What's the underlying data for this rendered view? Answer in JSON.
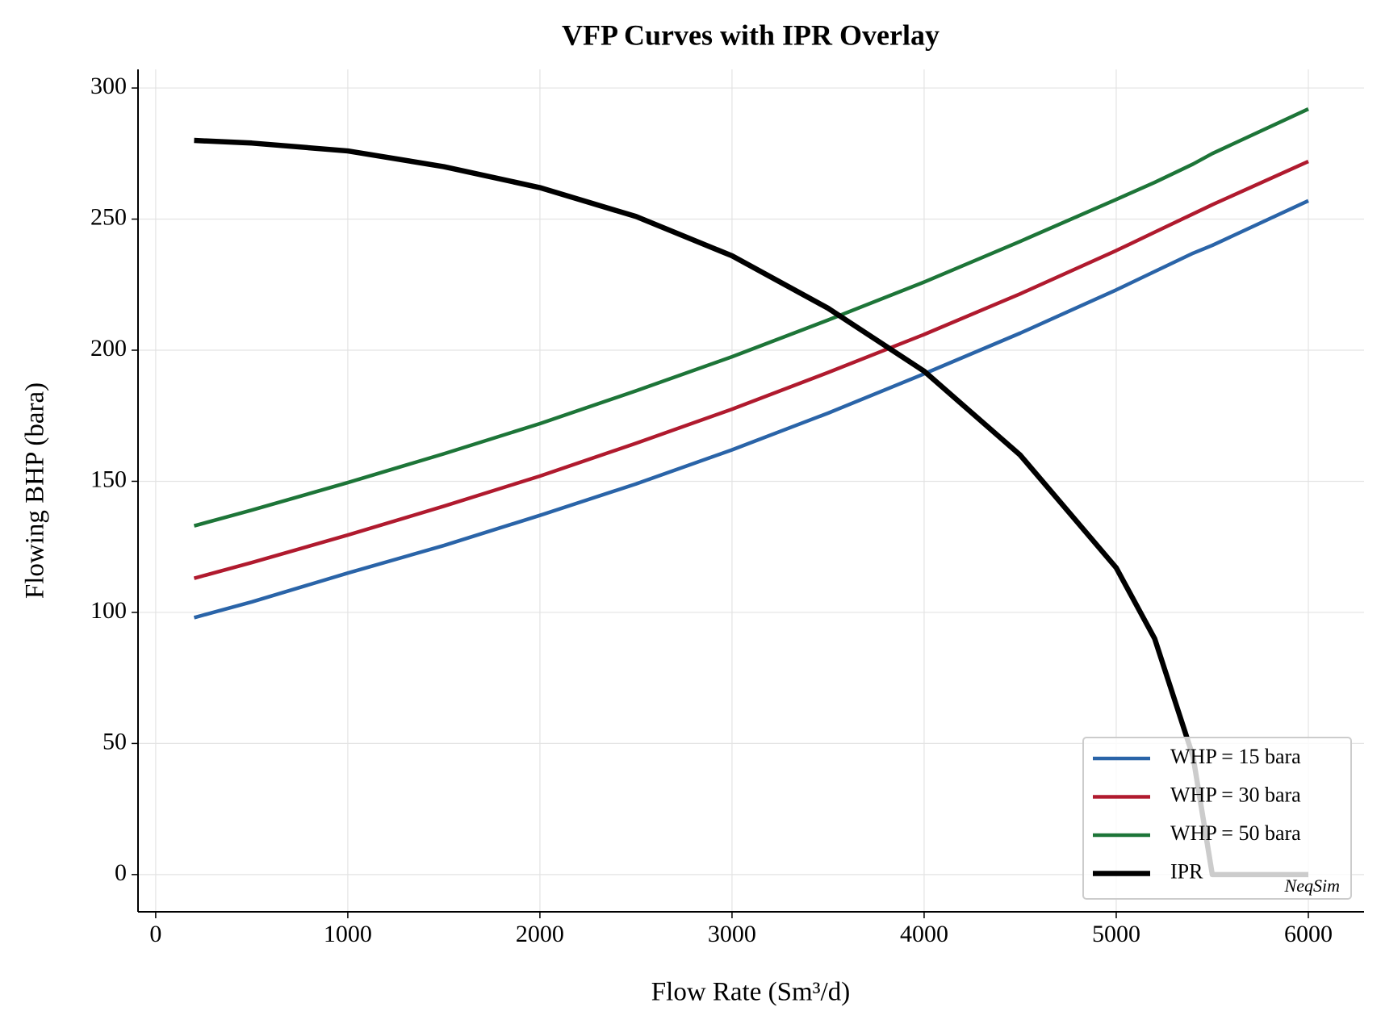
{
  "chart_data": {
    "type": "line",
    "title": "VFP Curves with IPR Overlay",
    "x_label": "Flow Rate (Sm³/d)",
    "y_label": "Flowing BHP (bara)",
    "x": [
      200,
      500,
      1000,
      1500,
      2000,
      2500,
      3000,
      3500,
      4000,
      4500,
      5000,
      5200,
      5400,
      5500,
      6000
    ],
    "series": [
      {
        "name": "WHP = 15 bara",
        "color": "#2a64a8",
        "width": 4.5,
        "values": [
          98,
          104,
          115,
          125.5,
          137,
          149,
          162,
          176,
          191,
          206.5,
          223,
          230,
          237,
          240,
          257
        ]
      },
      {
        "name": "WHP = 30 bara",
        "color": "#b01a2e",
        "width": 4.5,
        "values": [
          113,
          119,
          129.5,
          140.5,
          152,
          164.5,
          177.5,
          191.5,
          206,
          221.5,
          238,
          245,
          252,
          255.5,
          272
        ]
      },
      {
        "name": "WHP = 50 bara",
        "color": "#1d7538",
        "width": 4.5,
        "values": [
          133,
          139,
          149.5,
          160.5,
          172,
          184.5,
          197.5,
          211.5,
          226,
          241.5,
          257.5,
          264,
          271,
          275,
          292
        ]
      },
      {
        "name": "IPR",
        "color": "#000000",
        "width": 6.5,
        "values": [
          280,
          279,
          276,
          270,
          262,
          251,
          236,
          216,
          192,
          160,
          117,
          90,
          45,
          0,
          0
        ]
      }
    ],
    "xlim": [
      -92,
      6290
    ],
    "ylim": [
      -14.2,
      307.1
    ],
    "xticks": [
      0,
      1000,
      2000,
      3000,
      4000,
      5000,
      6000
    ],
    "yticks": [
      0,
      50,
      100,
      150,
      200,
      250,
      300
    ],
    "grid": true,
    "legend": "lower right",
    "watermark": "NeqSim"
  }
}
